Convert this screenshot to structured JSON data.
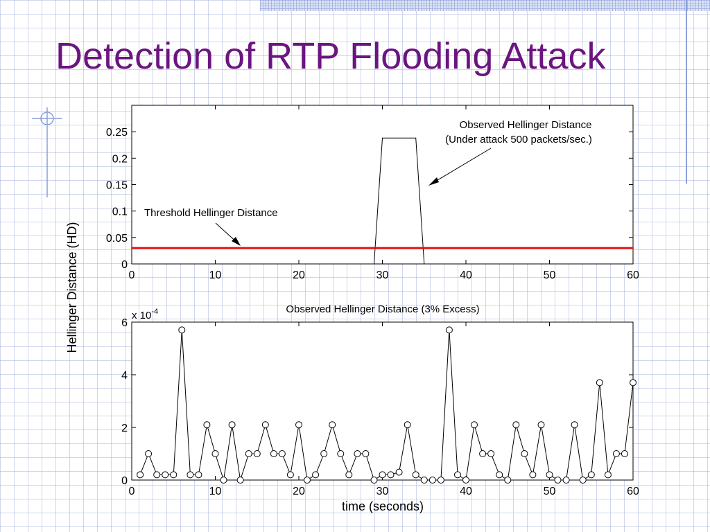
{
  "slide": {
    "title": "Detection of RTP Flooding Attack"
  },
  "chart_data": [
    {
      "type": "line",
      "ylabel": "Hellinger Distance (HD)",
      "xlabel": "",
      "xlim": [
        0,
        60
      ],
      "ylim": [
        0,
        0.3
      ],
      "xticks": [
        0,
        10,
        20,
        30,
        40,
        50,
        60
      ],
      "xtick_labels": [
        "0",
        "10",
        "20",
        "30",
        "40",
        "50",
        "60"
      ],
      "yticks": [
        0,
        0.05,
        0.1,
        0.15,
        0.2,
        0.25
      ],
      "ytick_labels": [
        "0",
        "0.05",
        "0.1",
        "0.15",
        "0.2",
        "0.25"
      ],
      "grid": false,
      "series": [
        {
          "color": "#000000",
          "x": [
            29,
            30,
            34,
            35
          ],
          "y": [
            0,
            0.238,
            0.238,
            0
          ]
        },
        {
          "color": "#e01010",
          "x": [
            0,
            60
          ],
          "y": [
            0.03,
            0.03
          ]
        }
      ],
      "annotations": [
        {
          "lines": [
            "Observed Hellinger Distance",
            "(Under attack 500 packets/sec.)"
          ]
        },
        {
          "lines": [
            "Threshold Hellinger Distance"
          ]
        }
      ]
    },
    {
      "type": "line",
      "title": "Observed Hellinger Distance (3% Excess)",
      "xlabel": "time (seconds)",
      "ylabel": "Hellinger Distance (HD)",
      "multiplier_base": "x 10",
      "multiplier_exp": "-4",
      "xlim": [
        0,
        60
      ],
      "ylim": [
        0,
        6
      ],
      "xticks": [
        0,
        10,
        20,
        30,
        40,
        50,
        60
      ],
      "xtick_labels": [
        "0",
        "10",
        "20",
        "30",
        "40",
        "50",
        "60"
      ],
      "yticks": [
        0,
        2,
        4,
        6
      ],
      "ytick_labels": [
        "0",
        "2",
        "4",
        "6"
      ],
      "grid": false,
      "series": [
        {
          "color": "#000000",
          "marker": "circle",
          "x": [
            1,
            2,
            3,
            4,
            5,
            6,
            7,
            8,
            9,
            10,
            11,
            12,
            13,
            14,
            15,
            16,
            17,
            18,
            19,
            20,
            21,
            22,
            23,
            24,
            25,
            26,
            27,
            28,
            29,
            30,
            31,
            32,
            33,
            34,
            35,
            36,
            37,
            38,
            39,
            40,
            41,
            42,
            43,
            44,
            45,
            46,
            47,
            48,
            49,
            50,
            51,
            52,
            53,
            54,
            55,
            56,
            57,
            58,
            59,
            60
          ],
          "y": [
            0.2,
            1.0,
            0.2,
            0.2,
            0.2,
            5.7,
            0.2,
            0.2,
            2.1,
            1.0,
            0.0,
            2.1,
            0.0,
            1.0,
            1.0,
            2.1,
            1.0,
            1.0,
            0.2,
            2.1,
            0.0,
            0.2,
            1.0,
            2.1,
            1.0,
            0.2,
            1.0,
            1.0,
            0.0,
            0.2,
            0.2,
            0.3,
            2.1,
            0.2,
            0.0,
            0.0,
            0.0,
            5.7,
            0.2,
            0.0,
            2.1,
            1.0,
            1.0,
            0.2,
            0.0,
            2.1,
            1.0,
            0.2,
            2.1,
            0.2,
            0.0,
            0.0,
            2.1,
            0.0,
            0.2,
            3.7,
            0.2,
            1.0,
            1.0,
            3.7
          ]
        }
      ]
    }
  ]
}
